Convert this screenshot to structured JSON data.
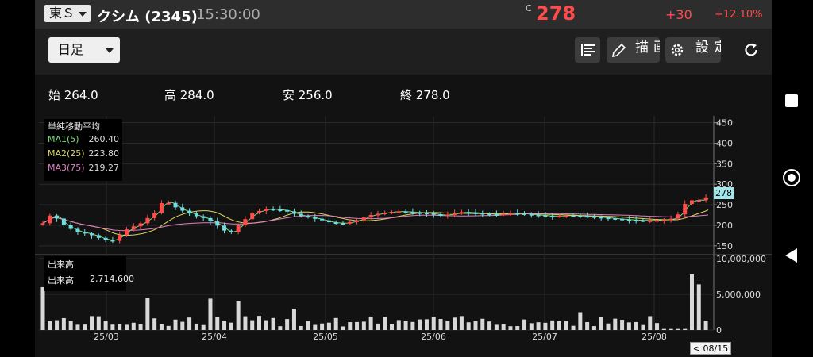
{
  "header": {
    "market_label": "東Ｓ",
    "stock_name": "クシム (2345)",
    "time": "15:30:00",
    "price_prefix": "C",
    "price": "278",
    "change": "+30",
    "change_pct": "+12.10%"
  },
  "toolbar": {
    "period_label": "日足",
    "draw_label": "描画",
    "settings_label": "設定"
  },
  "ohlc": {
    "open": "始 264.0",
    "high": "高 284.0",
    "low": "安 256.0",
    "close": "終 278.0"
  },
  "ma_legend": {
    "title": "単純移動平均",
    "items": [
      {
        "label": "MA1(5)",
        "value": "260.40",
        "color": "#7fdc7f"
      },
      {
        "label": "MA2(25)",
        "value": "223.80",
        "color": "#d8d860"
      },
      {
        "label": "MA3(75)",
        "value": "219.27",
        "color": "#e27ec2"
      }
    ]
  },
  "volume_legend": {
    "title": "出来高",
    "label": "出来高",
    "value": "2,714,600"
  },
  "price_axis": {
    "ticks": [
      "450",
      "400",
      "350",
      "300",
      "250",
      "200",
      "150"
    ],
    "current_tag": "278"
  },
  "volume_axis": {
    "ticks": [
      "10,000,000",
      "5,000,000",
      "0"
    ]
  },
  "date_axis": {
    "labels": [
      "25/03",
      "25/04",
      "25/05",
      "25/06",
      "25/07",
      "25/08"
    ]
  },
  "date_button": "< 08/15 >",
  "colors": {
    "up": "#ff4c4c",
    "down": "#6fdde0",
    "volume": "#d8d8d8",
    "price_text": "#ff4b4b"
  },
  "chart_data": {
    "type": "candlestick",
    "price_ylim": [
      140,
      455
    ],
    "volume_ylim": [
      0,
      10000000
    ],
    "x_labels": [
      "25/03",
      "25/04",
      "25/05",
      "25/06",
      "25/07",
      "25/08"
    ],
    "ma_series": [
      {
        "name": "MA1(5)",
        "last": 260.4
      },
      {
        "name": "MA2(25)",
        "last": 223.8
      },
      {
        "name": "MA3(75)",
        "last": 219.27
      }
    ],
    "last_candle": {
      "open": 264.0,
      "high": 284.0,
      "low": 256.0,
      "close": 278.0,
      "volume": 2714600
    }
  }
}
